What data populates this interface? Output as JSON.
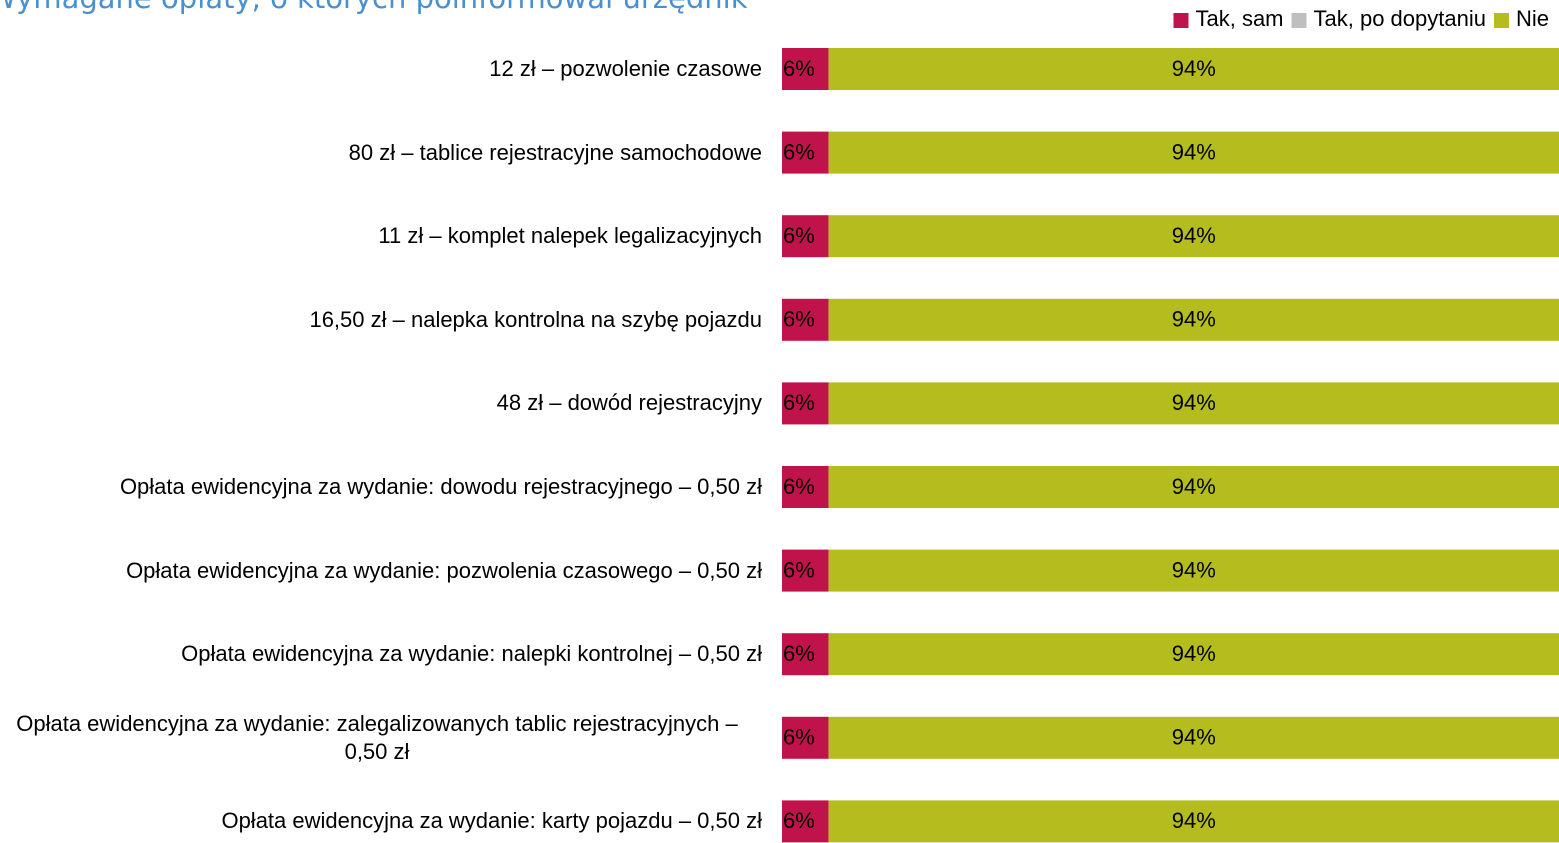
{
  "chart_data": {
    "type": "stacked_bar_horizontal",
    "title": "Wymagane opłaty, o których poinformował urzędnik",
    "categories": [
      "12 zł – pozwolenie czasowe",
      "80 zł – tablice rejestracyjne samochodowe",
      "11 zł – komplet nalepek legalizacyjnych",
      "16,50 zł – nalepka kontrolna na szybę pojazdu",
      "48 zł – dowód rejestracyjny",
      "Opłata ewidencyjna za wydanie: dowodu rejestracyjnego – 0,50 zł",
      "Opłata ewidencyjna za wydanie: pozwolenia czasowego – 0,50 zł",
      "Opłata ewidencyjna za wydanie: nalepki kontrolnej – 0,50 zł",
      "Opłata ewidencyjna za wydanie: zalegalizowanych tablic rejestracyjnych – 0,50 zł",
      "Opłata ewidencyjna za wydanie: karty pojazdu – 0,50 zł"
    ],
    "series": [
      {
        "name": "Tak, sam",
        "color": "#c0134b",
        "values": [
          6,
          6,
          6,
          6,
          6,
          6,
          6,
          6,
          6,
          6
        ],
        "value_labels": [
          "6%",
          "6%",
          "6%",
          "6%",
          "6%",
          "6%",
          "6%",
          "6%",
          "6%",
          "6%"
        ]
      },
      {
        "name": "Tak, po dopytaniu",
        "color": "#bfbfbf",
        "values": [
          0,
          0,
          0,
          0,
          0,
          0,
          0,
          0,
          0,
          0
        ]
      },
      {
        "name": "Nie",
        "color": "#b5bd1e",
        "values": [
          94,
          94,
          94,
          94,
          94,
          94,
          94,
          94,
          94,
          94
        ],
        "value_labels": [
          "94%",
          "94%",
          "94%",
          "94%",
          "94%",
          "94%",
          "94%",
          "94%",
          "94%",
          "94%"
        ]
      }
    ],
    "xlim": [
      0,
      100
    ],
    "legend": "top-right"
  }
}
